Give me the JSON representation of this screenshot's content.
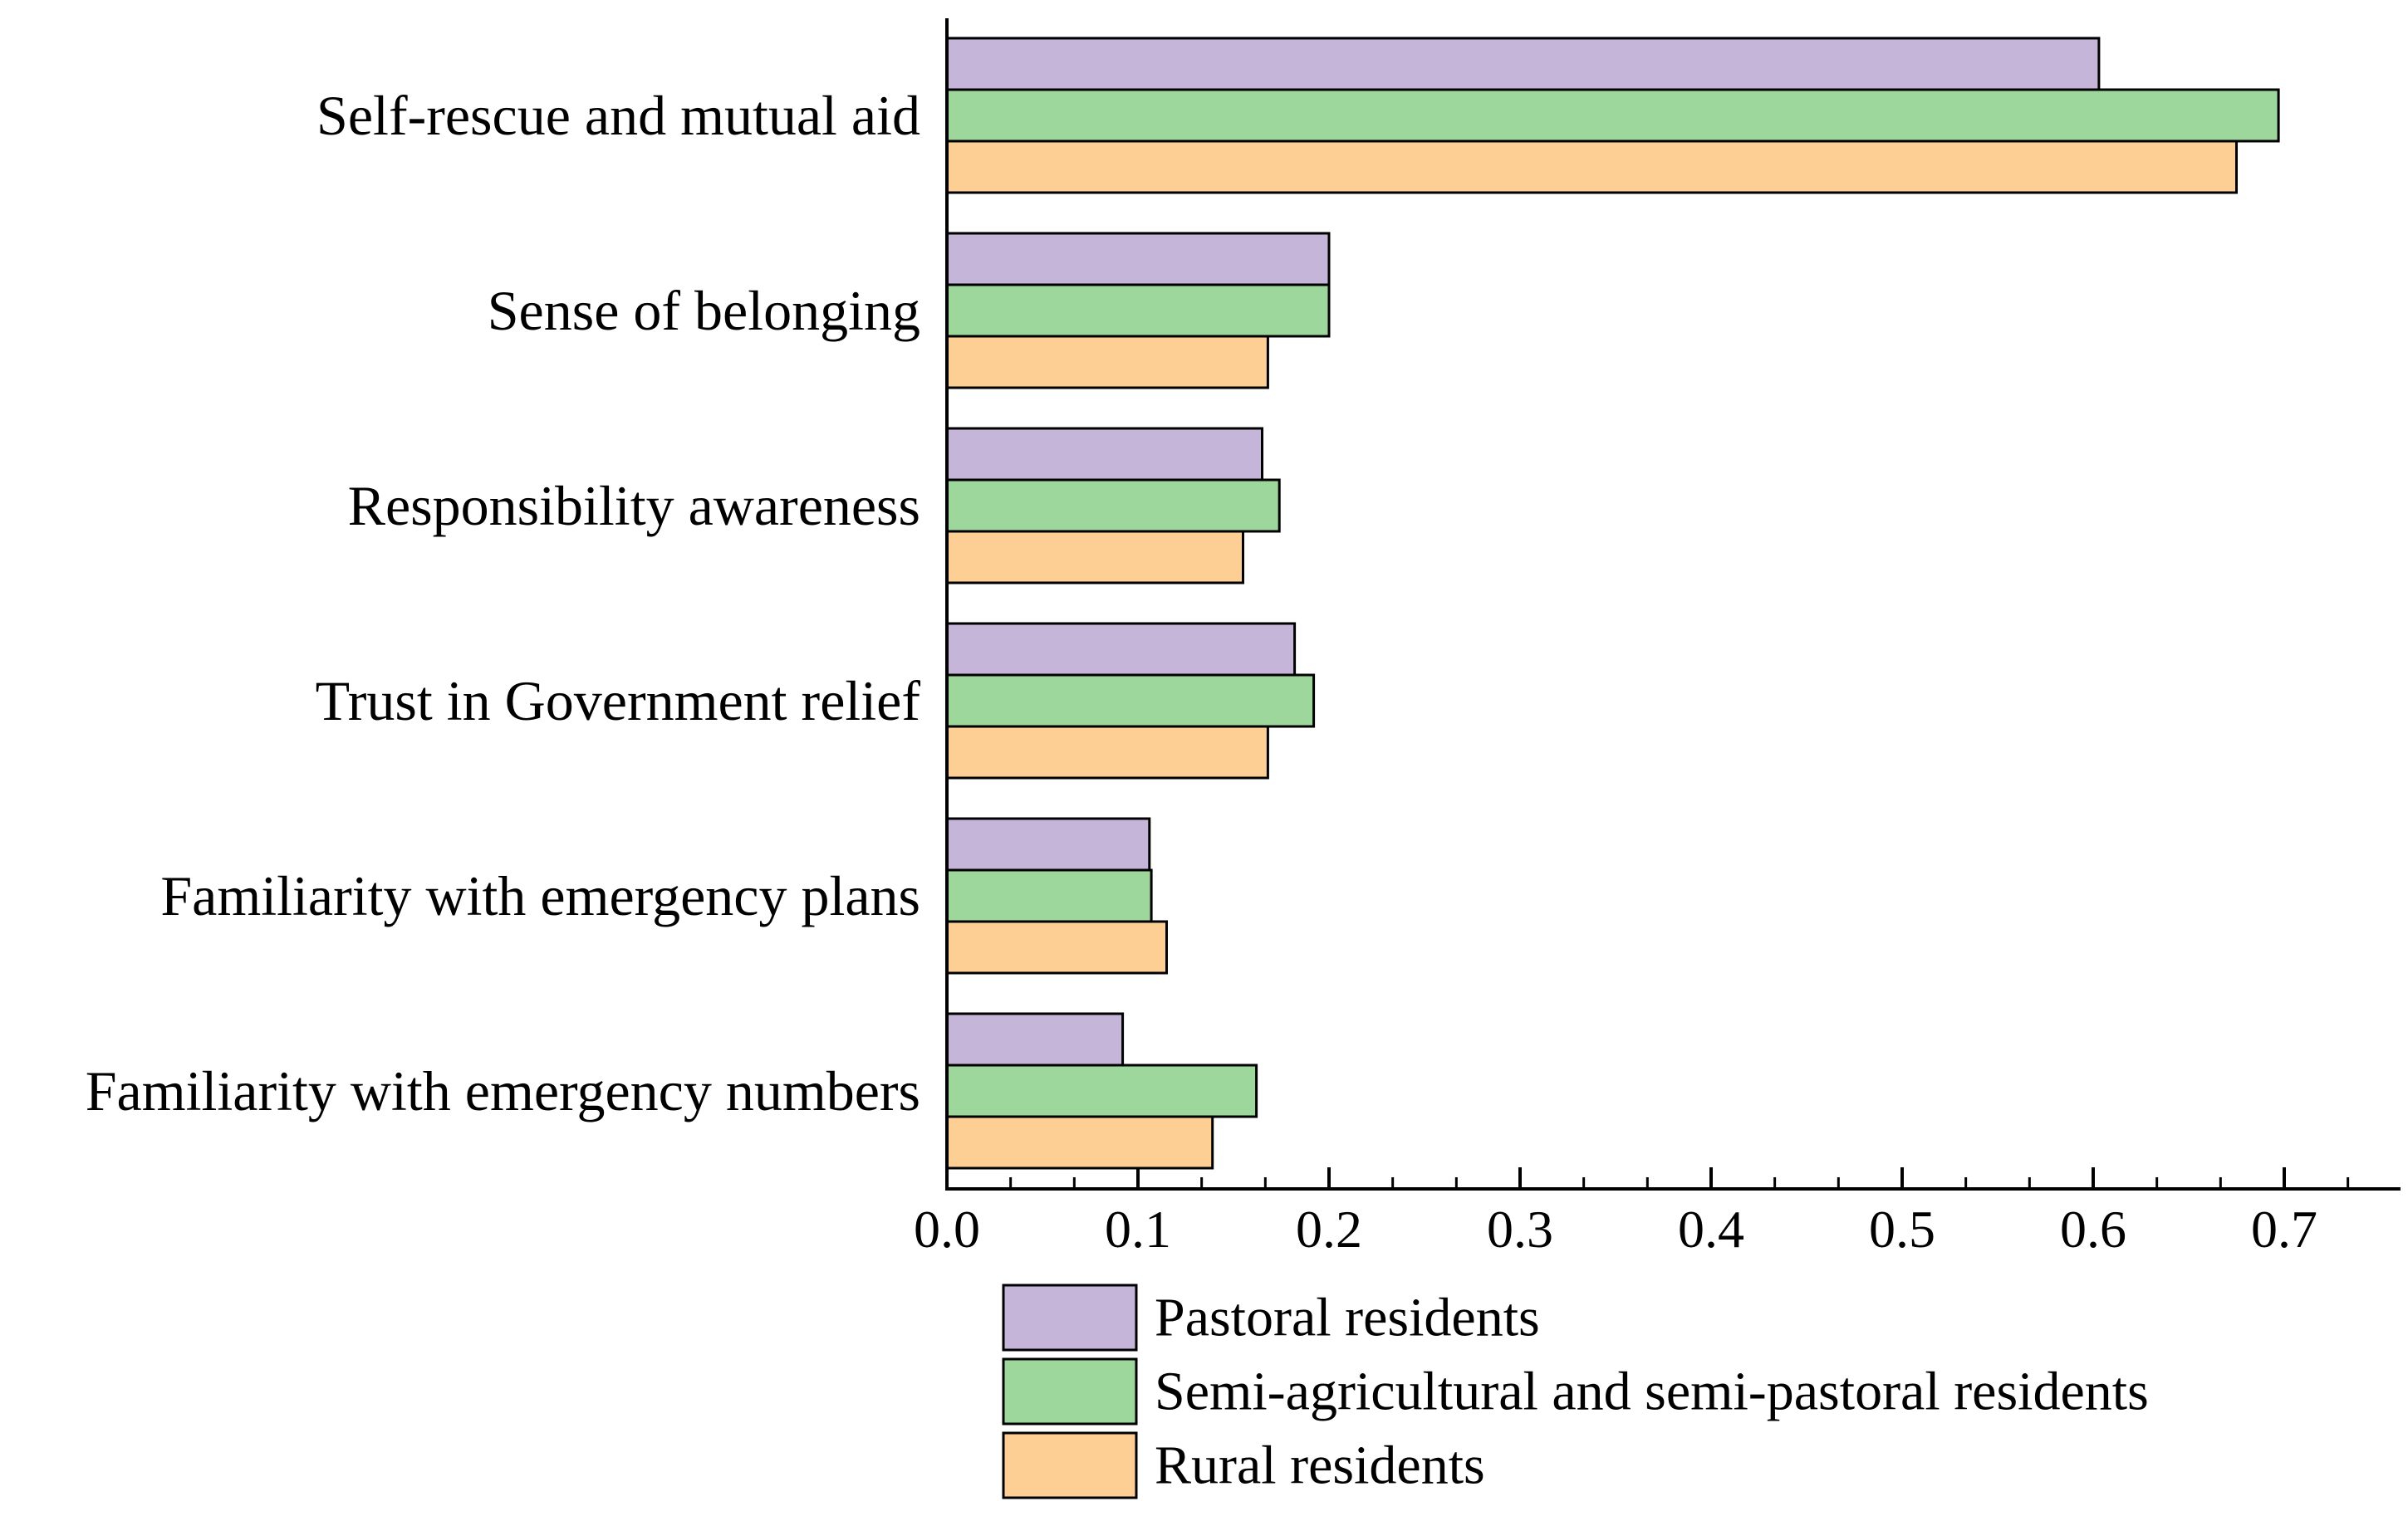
{
  "chart_data": {
    "type": "bar",
    "orientation": "horizontal",
    "title": "",
    "xlabel": "",
    "ylabel": "",
    "xlim": [
      0,
      0.76
    ],
    "x_ticks": [
      0.0,
      0.1,
      0.2,
      0.3,
      0.4,
      0.5,
      0.6,
      0.7
    ],
    "x_tick_labels": [
      "0.0",
      "0.1",
      "0.2",
      "0.3",
      "0.4",
      "0.5",
      "0.6",
      "0.7"
    ],
    "minor_tick_step": 0.033333,
    "grid": false,
    "legend_position": "bottom",
    "categories": [
      "Self-rescue and mutual aid",
      "Sense of belonging",
      "Responsibility awareness",
      "Trust in Government relief",
      "Familiarity with emergency plans",
      "Familiarity with emergency numbers"
    ],
    "series": [
      {
        "name": "Pastoral residents",
        "color": "#c5b5d9",
        "values": [
          0.603,
          0.2,
          0.165,
          0.182,
          0.106,
          0.092
        ]
      },
      {
        "name": "Semi-agricultural and semi-pastoral residents",
        "color": "#9dd79b",
        "values": [
          0.697,
          0.2,
          0.174,
          0.192,
          0.107,
          0.162
        ]
      },
      {
        "name": "Rural residents",
        "color": "#fdcf95",
        "values": [
          0.675,
          0.168,
          0.155,
          0.168,
          0.115,
          0.139
        ]
      }
    ],
    "bar_edge_color": "#000000",
    "axis_color": "#000000"
  }
}
